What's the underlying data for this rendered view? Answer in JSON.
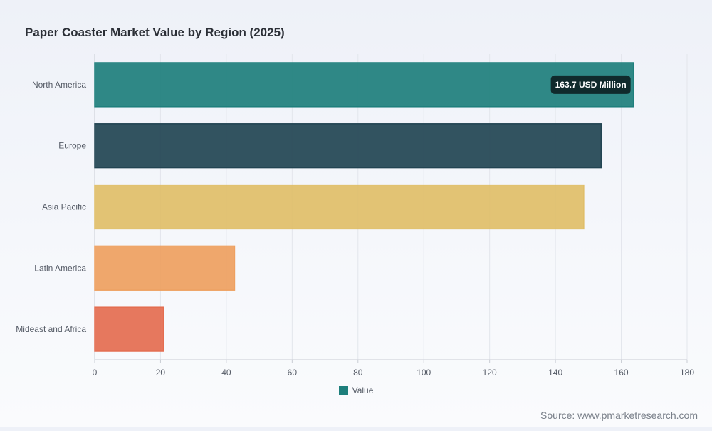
{
  "page": {
    "title": "Paper Coaster Market Value by Region (2025)",
    "source": "Source: www.pmarketresearch.com"
  },
  "legend": {
    "label": "Value",
    "color": "#1e7f7c"
  },
  "tooltip": {
    "text": "163.7 USD Million",
    "category": "North America"
  },
  "chart_data": {
    "type": "bar",
    "orientation": "horizontal",
    "title": "Paper Coaster Market Value by Region (2025)",
    "categories": [
      "North America",
      "Europe",
      "Asia Pacific",
      "Latin America",
      "Mideast and Africa"
    ],
    "series": [
      {
        "name": "Value",
        "values": [
          163.7,
          153.9,
          148.6,
          42.5,
          20.9
        ]
      }
    ],
    "colors": [
      "#1e7f7c",
      "#224452",
      "#e0be68",
      "#eea060",
      "#e46d50"
    ],
    "xlim": [
      0,
      180
    ],
    "xticks": [
      0,
      20,
      40,
      60,
      80,
      100,
      120,
      140,
      160,
      180
    ],
    "grid": true,
    "legend_position": "bottom"
  }
}
